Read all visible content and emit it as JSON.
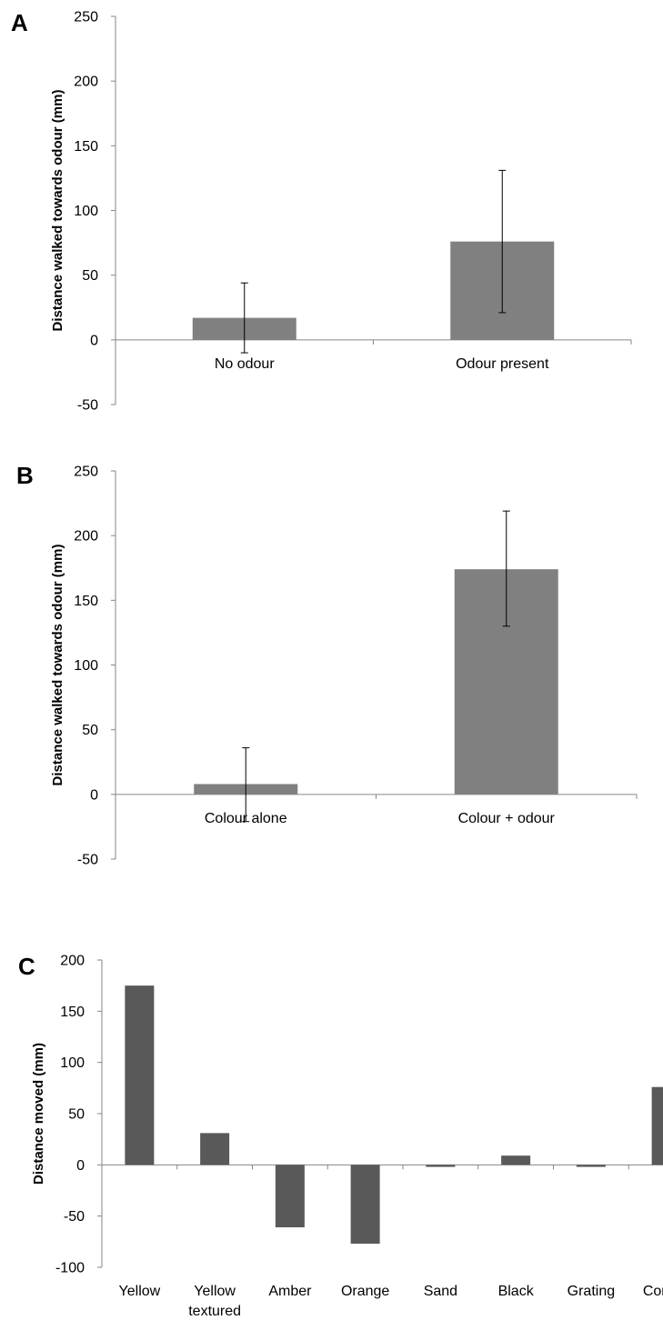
{
  "chart_data": [
    {
      "type": "bar",
      "panel": "A",
      "ylabel": "Distance walked towards odour (mm)",
      "ylim": [
        -50,
        250
      ],
      "yticks": [
        -50,
        0,
        50,
        100,
        150,
        200,
        250
      ],
      "categories": [
        "No odour",
        "Odour present"
      ],
      "values": [
        17,
        76
      ],
      "error": [
        [
          -10,
          44
        ],
        [
          21,
          131
        ]
      ],
      "bar_color": "#808080"
    },
    {
      "type": "bar",
      "panel": "B",
      "ylabel": "Distance walked towards odour (mm)",
      "ylim": [
        -50,
        250
      ],
      "yticks": [
        -50,
        0,
        50,
        100,
        150,
        200,
        250
      ],
      "categories": [
        "Colour alone",
        "Colour + odour"
      ],
      "values": [
        8,
        174
      ],
      "error": [
        [
          -21,
          36
        ],
        [
          130,
          219
        ]
      ],
      "bar_color": "#808080"
    },
    {
      "type": "bar",
      "panel": "C",
      "ylabel": "Distance moved (mm)",
      "ylim": [
        -100,
        200
      ],
      "yticks": [
        -100,
        -50,
        0,
        50,
        100,
        150,
        200
      ],
      "categories": [
        [
          "Yellow"
        ],
        [
          "Yellow",
          "textured"
        ],
        [
          "Amber"
        ],
        [
          "Orange"
        ],
        [
          "Sand"
        ],
        [
          "Black"
        ],
        [
          "Grating"
        ],
        [
          "Control"
        ]
      ],
      "values": [
        175,
        31,
        -61,
        -77,
        -2,
        9,
        -2,
        76
      ],
      "bar_color": "#595959"
    }
  ]
}
